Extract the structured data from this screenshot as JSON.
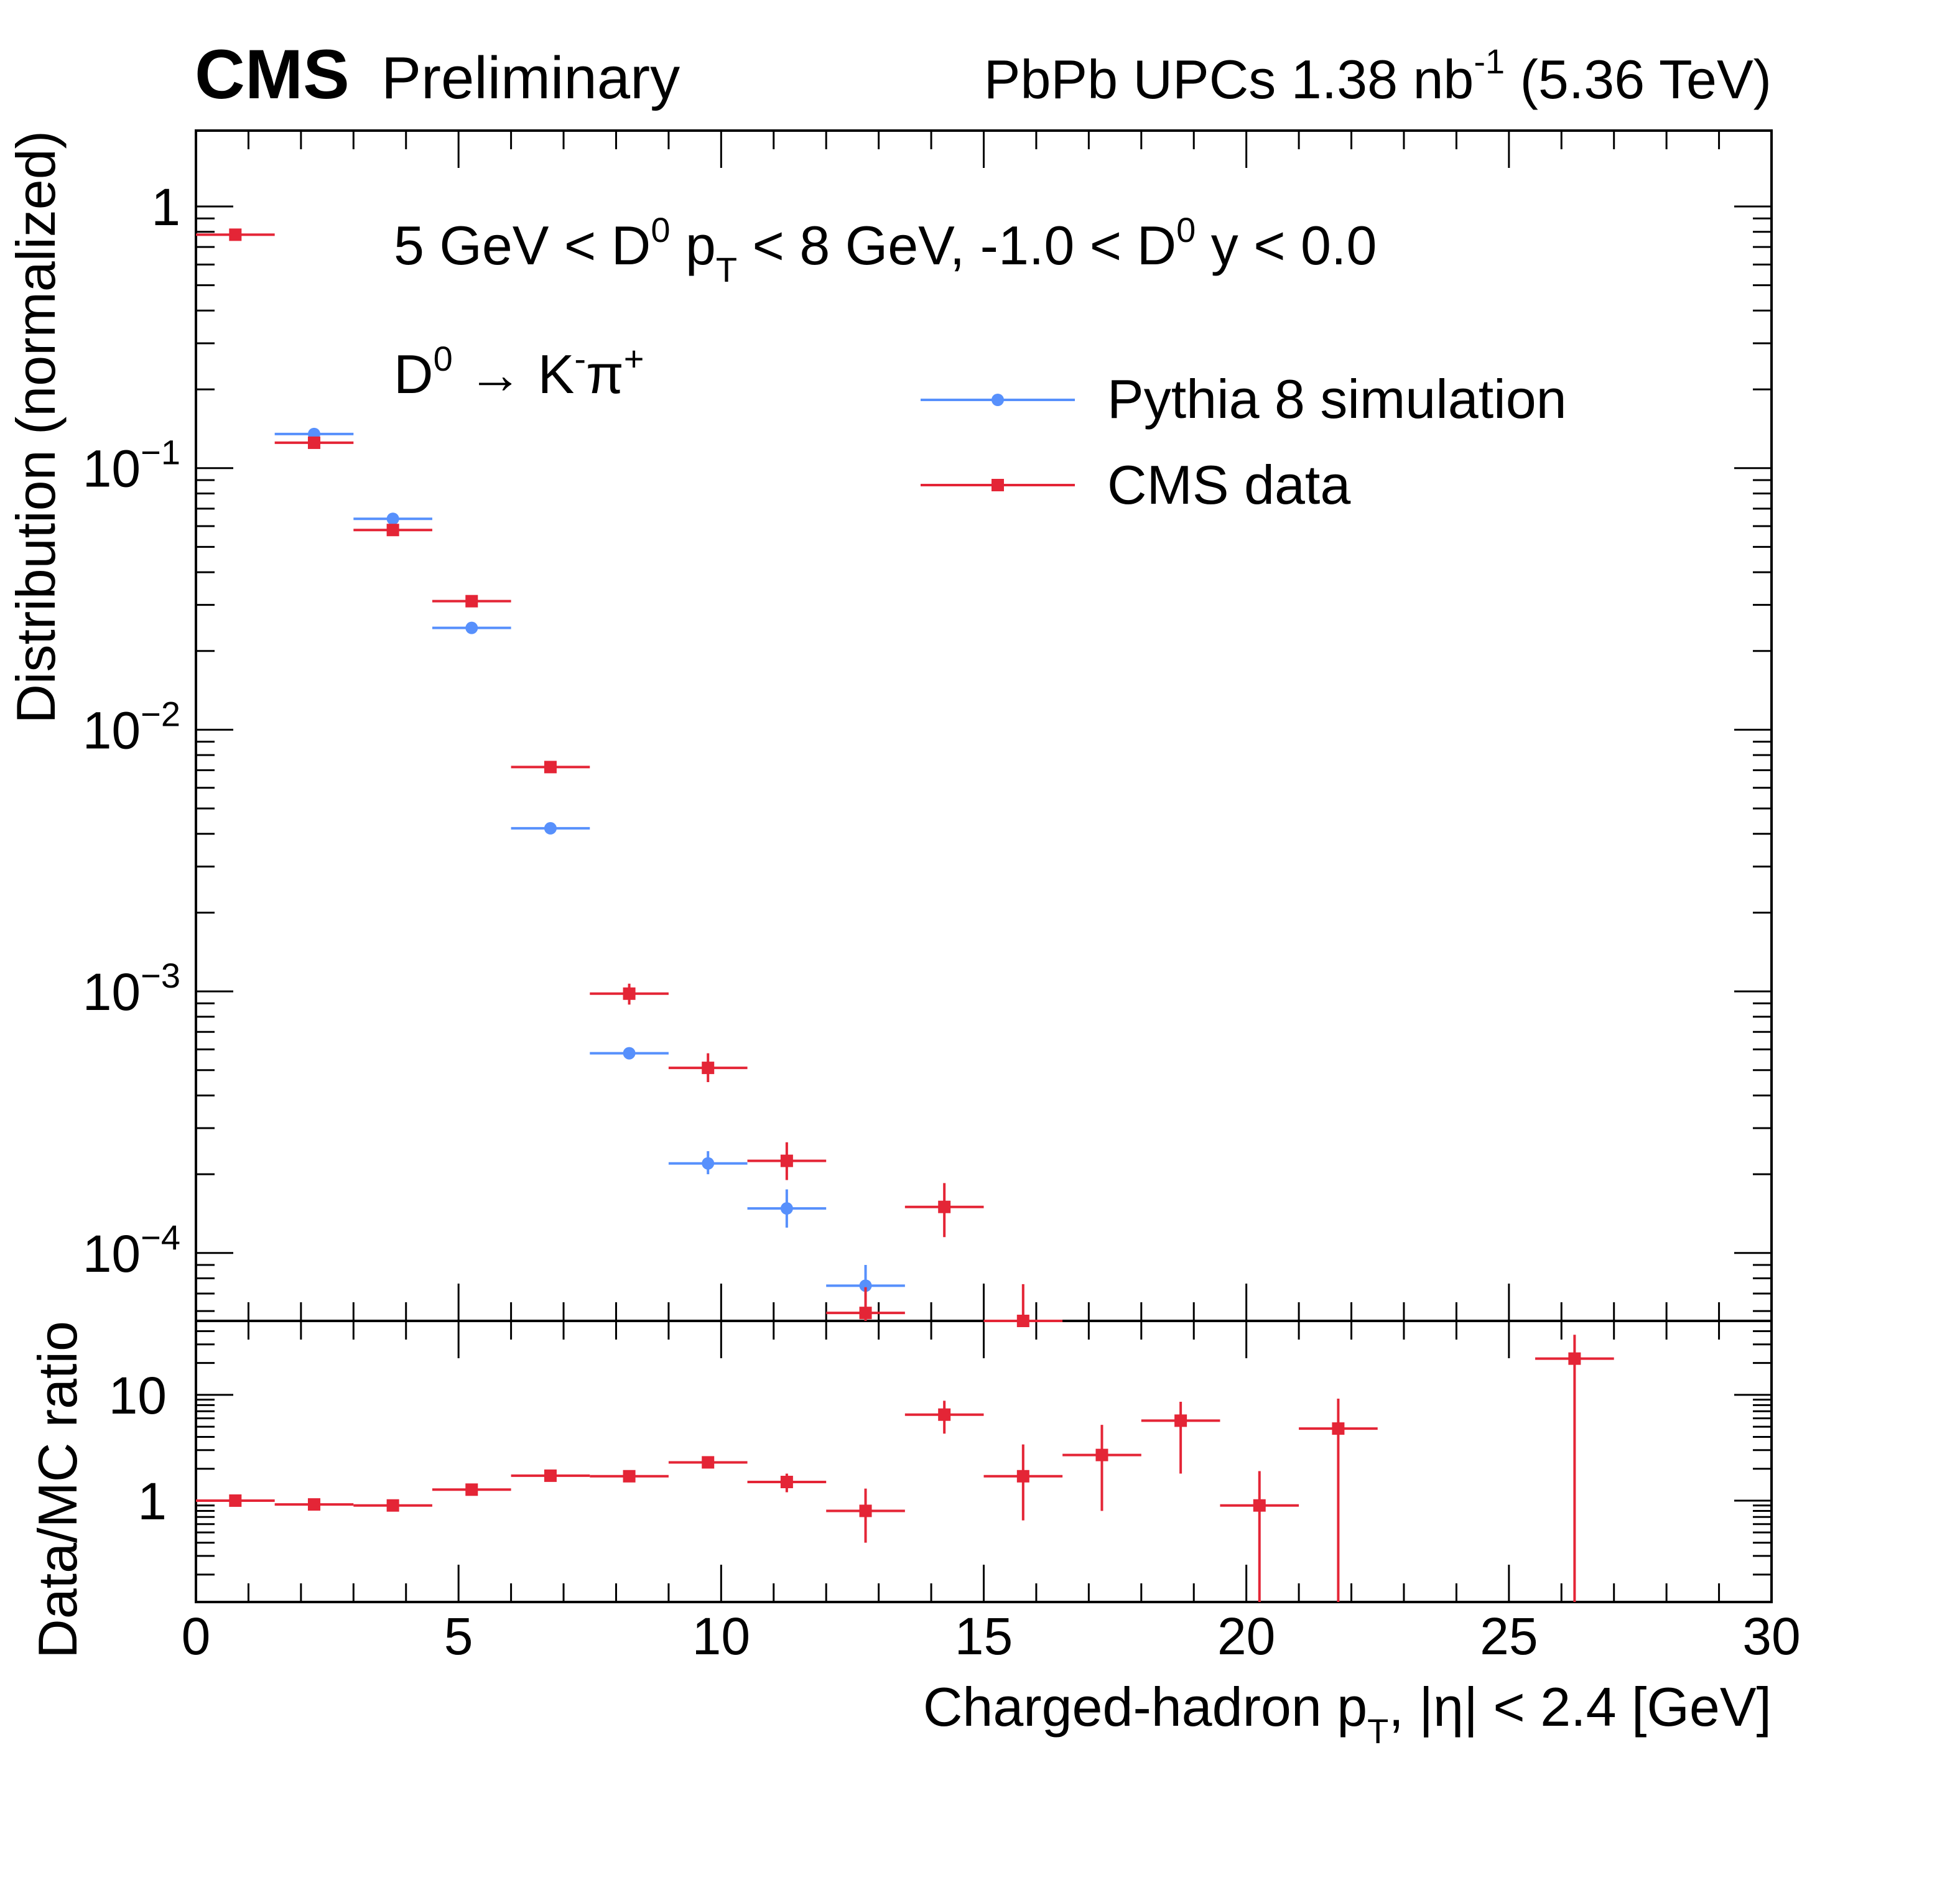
{
  "header": {
    "experiment": "CMS",
    "status": "Preliminary",
    "lumi_main": "PbPb UPCs 1.38 nb",
    "lumi_exp": "-1",
    "energy": "(5.36 TeV)"
  },
  "annotations": {
    "selection": {
      "t1": "5 GeV < D",
      "s1": "0",
      "t2": " p",
      "s2": "T",
      "t3": " < 8 GeV, -1.0 < D",
      "s3": "0",
      "t4": " y < 0.0"
    },
    "decay": {
      "t1": "D",
      "s1": "0",
      "t2": " → K",
      "s2": "-",
      "t3": "π",
      "s3": "+"
    }
  },
  "axes": {
    "ylabel_top": "Distribution (normalized)",
    "ylabel_bottom": "Data/MC ratio",
    "xlabel": {
      "t1": "Charged-hadron p",
      "sub": "T",
      "t2": ", |η| < 2.4 [GeV]"
    },
    "x_ticks": [
      "0",
      "5",
      "10",
      "15",
      "20",
      "25",
      "30"
    ],
    "y_top_ticks": [
      {
        "base": "1",
        "exp": ""
      },
      {
        "base": "10",
        "exp": "−1"
      },
      {
        "base": "10",
        "exp": "−2"
      },
      {
        "base": "10",
        "exp": "−3"
      },
      {
        "base": "10",
        "exp": "−4"
      }
    ],
    "y_bottom_ticks": [
      "10",
      "1"
    ]
  },
  "legend": {
    "items": [
      {
        "label": "Pythia 8 simulation",
        "color": "#5790fc",
        "marker": "circle"
      },
      {
        "label": "CMS data",
        "color": "#e42536",
        "marker": "square"
      }
    ],
    "placement": "top-right"
  },
  "chart_data": [
    {
      "type": "scatter",
      "panel": "top",
      "ylabel": "Distribution (normalized)",
      "xlim": [
        0,
        30
      ],
      "ylim": [
        5.5e-05,
        1.95
      ],
      "yscale": "log",
      "grid": false,
      "series": [
        {
          "name": "Pythia 8 simulation",
          "color": "#5790fc",
          "marker": "circle",
          "points": [
            {
              "x": 2.25,
              "xlo": 1.5,
              "xhi": 3.0,
              "y": 0.135
            },
            {
              "x": 3.75,
              "xlo": 3.0,
              "xhi": 4.5,
              "y": 0.064
            },
            {
              "x": 5.25,
              "xlo": 4.5,
              "xhi": 6.0,
              "y": 0.0245
            },
            {
              "x": 6.75,
              "xlo": 6.0,
              "xhi": 7.5,
              "y": 0.0042
            },
            {
              "x": 8.25,
              "xlo": 7.5,
              "xhi": 9.0,
              "y": 0.00058
            },
            {
              "x": 9.75,
              "xlo": 9.0,
              "xhi": 10.5,
              "y": 0.00022,
              "ylo": 0.0002,
              "yhi": 0.000245
            },
            {
              "x": 11.25,
              "xlo": 10.5,
              "xhi": 12.0,
              "y": 0.000148,
              "ylo": 0.000125,
              "yhi": 0.000175
            },
            {
              "x": 12.75,
              "xlo": 12.0,
              "xhi": 13.5,
              "y": 7.5e-05,
              "ylo": 6.2e-05,
              "yhi": 9e-05
            }
          ]
        },
        {
          "name": "CMS data",
          "color": "#e42536",
          "marker": "square",
          "points": [
            {
              "x": 0.75,
              "xlo": 0.0,
              "xhi": 1.5,
              "y": 0.78
            },
            {
              "x": 2.25,
              "xlo": 1.5,
              "xhi": 3.0,
              "y": 0.125
            },
            {
              "x": 3.75,
              "xlo": 3.0,
              "xhi": 4.5,
              "y": 0.058
            },
            {
              "x": 5.25,
              "xlo": 4.5,
              "xhi": 6.0,
              "y": 0.031
            },
            {
              "x": 6.75,
              "xlo": 6.0,
              "xhi": 7.5,
              "y": 0.0072
            },
            {
              "x": 8.25,
              "xlo": 7.5,
              "xhi": 9.0,
              "y": 0.00098,
              "ylo": 0.00089,
              "yhi": 0.00107
            },
            {
              "x": 9.75,
              "xlo": 9.0,
              "xhi": 10.5,
              "y": 0.00051,
              "ylo": 0.00045,
              "yhi": 0.00058
            },
            {
              "x": 11.25,
              "xlo": 10.5,
              "xhi": 12.0,
              "y": 0.000225,
              "ylo": 0.00019,
              "yhi": 0.000265
            },
            {
              "x": 12.75,
              "xlo": 12.0,
              "xhi": 13.5,
              "y": 5.9e-05,
              "ylo": 4.6e-05,
              "yhi": 7.4e-05
            },
            {
              "x": 14.25,
              "xlo": 13.5,
              "xhi": 15.0,
              "y": 0.00015,
              "ylo": 0.000115,
              "yhi": 0.000185
            },
            {
              "x": 15.75,
              "xlo": 15.0,
              "xhi": 16.5,
              "y": 5.2e-05,
              "ylo": 2.5e-05,
              "yhi": 7.6e-05
            }
          ]
        }
      ]
    },
    {
      "type": "scatter",
      "panel": "bottom",
      "ylabel": "Data/MC ratio",
      "xlabel": "Charged-hadron pT, |η| < 2.4 [GeV]",
      "xlim": [
        0,
        30
      ],
      "ylim": [
        0.11,
        50
      ],
      "yscale": "log",
      "grid": false,
      "series": [
        {
          "name": "Data/MC ratio",
          "color": "#e42536",
          "marker": "square",
          "points": [
            {
              "x": 0.75,
              "xlo": 0.0,
              "xhi": 1.5,
              "y": 1.0
            },
            {
              "x": 2.25,
              "xlo": 1.5,
              "xhi": 3.0,
              "y": 0.92
            },
            {
              "x": 3.75,
              "xlo": 3.0,
              "xhi": 4.5,
              "y": 0.9
            },
            {
              "x": 5.25,
              "xlo": 4.5,
              "xhi": 6.0,
              "y": 1.27
            },
            {
              "x": 6.75,
              "xlo": 6.0,
              "xhi": 7.5,
              "y": 1.72
            },
            {
              "x": 8.25,
              "xlo": 7.5,
              "xhi": 9.0,
              "y": 1.7,
              "ylo": 1.55,
              "yhi": 1.85
            },
            {
              "x": 9.75,
              "xlo": 9.0,
              "xhi": 10.5,
              "y": 2.3,
              "ylo": 2.05,
              "yhi": 2.6
            },
            {
              "x": 11.25,
              "xlo": 10.5,
              "xhi": 12.0,
              "y": 1.5,
              "ylo": 1.2,
              "yhi": 1.8
            },
            {
              "x": 12.75,
              "xlo": 12.0,
              "xhi": 13.5,
              "y": 0.8,
              "ylo": 0.4,
              "yhi": 1.3
            },
            {
              "x": 14.25,
              "xlo": 13.5,
              "xhi": 15.0,
              "y": 6.5,
              "ylo": 4.3,
              "yhi": 8.8
            },
            {
              "x": 15.75,
              "xlo": 15.0,
              "xhi": 16.5,
              "y": 1.7,
              "ylo": 0.65,
              "yhi": 3.4
            },
            {
              "x": 17.25,
              "xlo": 16.5,
              "xhi": 18.0,
              "y": 2.7,
              "ylo": 0.8,
              "yhi": 5.2
            },
            {
              "x": 18.75,
              "xlo": 18.0,
              "xhi": 19.5,
              "y": 5.7,
              "ylo": 1.8,
              "yhi": 8.6
            },
            {
              "x": 20.25,
              "xlo": 19.5,
              "xhi": 21.0,
              "y": 0.9,
              "ylo": 0.11,
              "yhi": 1.9
            },
            {
              "x": 21.75,
              "xlo": 21.0,
              "xhi": 22.5,
              "y": 4.8,
              "ylo": 0.11,
              "yhi": 9.2
            },
            {
              "x": 26.25,
              "xlo": 25.5,
              "xhi": 27.0,
              "y": 22.0,
              "ylo": 0.11,
              "yhi": 37.0
            }
          ]
        }
      ]
    }
  ]
}
